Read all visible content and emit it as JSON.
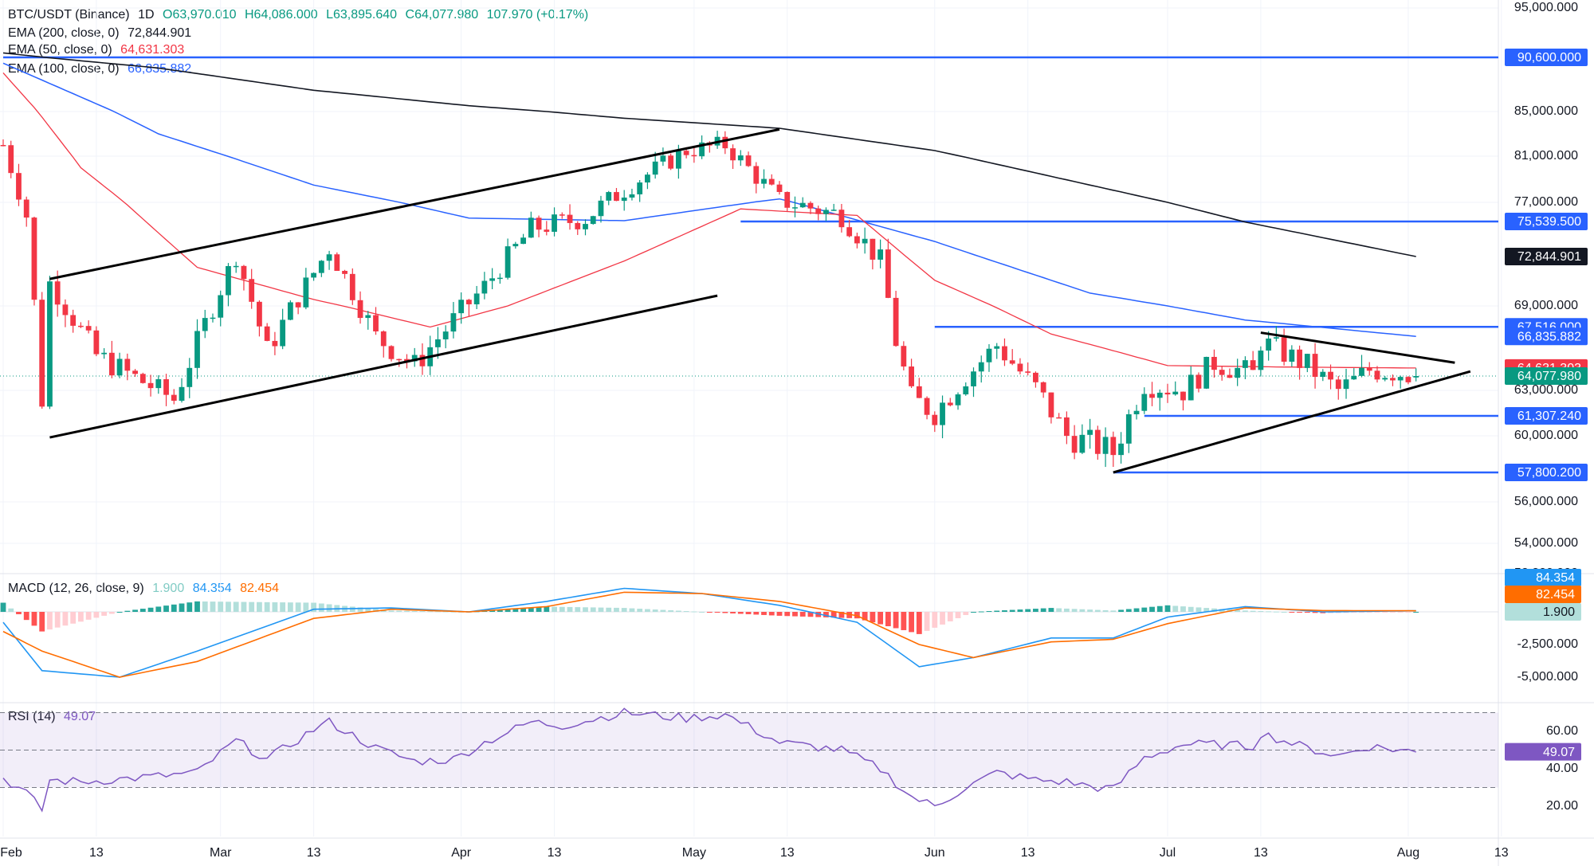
{
  "header": {
    "symbol": "BTC/USDT (Binance)",
    "interval": "1D",
    "open": "O63,970.010",
    "high": "H64,086.000",
    "low": "L63,895.640",
    "close": "C64,077.980",
    "change": "107.970 (+0.17%)"
  },
  "indicators": {
    "ema200": {
      "label": "EMA (200, close, 0)",
      "value": "72,844.901",
      "color": "#131722"
    },
    "ema50": {
      "label": "EMA (50, close, 0)",
      "value": "64,631.303",
      "color": "#f23645"
    },
    "ema100": {
      "label": "EMA (100, close, 0)",
      "value": "66,835.882",
      "color": "#2962ff"
    },
    "macd": {
      "label": "MACD (12, 26, close, 9)",
      "hist": "1.900",
      "macd": "84.354",
      "signal": "82.454",
      "macd_color": "#2196f3",
      "signal_color": "#ff6d00",
      "hist_color": "#b2dfdb"
    },
    "rsi": {
      "label": "RSI (14)",
      "value": "49.07",
      "color": "#7e57c2"
    }
  },
  "colors": {
    "up": "#089981",
    "down": "#f23645",
    "level_line": "#2962ff",
    "trendline": "#000000",
    "grid": "#f0f3fa",
    "text": "#131722"
  },
  "chart_data": [
    {
      "type": "candlestick",
      "title": "BTC/USDT (Binance) 1D",
      "x_ticks": [
        "Feb",
        "13",
        "Mar",
        "13",
        "Apr",
        "13",
        "May",
        "13",
        "Jun",
        "13",
        "Jul",
        "13",
        "Aug",
        "13"
      ],
      "y_ticks": [
        "95,000.000",
        "85,000.000",
        "81,000.000",
        "77,000.000",
        "69,000.000",
        "63,000.000",
        "60,000.000",
        "56,000.000",
        "54,000.000",
        "52,200.000"
      ],
      "ylim": [
        52200,
        95000
      ],
      "price_labels": [
        {
          "text": "90,600.000",
          "value": 90600,
          "kind": "level"
        },
        {
          "text": "75,539.500",
          "value": 75539.5,
          "kind": "level"
        },
        {
          "text": "72,844.901",
          "value": 72844.901,
          "kind": "ema200"
        },
        {
          "text": "67,516.000",
          "value": 67516,
          "kind": "level"
        },
        {
          "text": "66,835.882",
          "value": 66835.882,
          "kind": "ema100"
        },
        {
          "text": "64,631.303",
          "value": 64631.303,
          "kind": "ema50"
        },
        {
          "text": "64,077.980",
          "value": 64077.98,
          "kind": "last"
        },
        {
          "text": "61,307.240",
          "value": 61307.24,
          "kind": "level"
        },
        {
          "text": "57,800.200",
          "value": 57800.2,
          "kind": "level"
        }
      ],
      "horizontal_levels": [
        {
          "value": 90600,
          "from_day": 0,
          "to_day": 200
        },
        {
          "value": 75539.5,
          "from_day": 95,
          "to_day": 200
        },
        {
          "value": 67516,
          "from_day": 120,
          "to_day": 200
        },
        {
          "value": 61307.24,
          "from_day": 147,
          "to_day": 200
        },
        {
          "value": 57800.2,
          "from_day": 143,
          "to_day": 200
        }
      ],
      "trendlines": [
        {
          "from": [
            6,
            71100
          ],
          "to": [
            100,
            83400
          ]
        },
        {
          "from": [
            6,
            59900
          ],
          "to": [
            92,
            69800
          ]
        },
        {
          "from": [
            143,
            57800
          ],
          "to": [
            189,
            64400
          ]
        },
        {
          "from": [
            162,
            67100
          ],
          "to": [
            187,
            65000
          ]
        }
      ],
      "ohlc_anchors": [
        {
          "day": 0,
          "close": 82000
        },
        {
          "day": 3,
          "close": 76000
        },
        {
          "day": 5,
          "close": 62400
        },
        {
          "day": 6,
          "close": 70800
        },
        {
          "day": 12,
          "close": 65500
        },
        {
          "day": 22,
          "close": 62400
        },
        {
          "day": 30,
          "close": 73000
        },
        {
          "day": 34,
          "close": 65800
        },
        {
          "day": 42,
          "close": 73500
        },
        {
          "day": 48,
          "close": 66800
        },
        {
          "day": 53,
          "close": 64800
        },
        {
          "day": 62,
          "close": 70500
        },
        {
          "day": 68,
          "close": 75000
        },
        {
          "day": 75,
          "close": 75800
        },
        {
          "day": 82,
          "close": 79000
        },
        {
          "day": 88,
          "close": 81500
        },
        {
          "day": 93,
          "close": 82000
        },
        {
          "day": 100,
          "close": 77200
        },
        {
          "day": 108,
          "close": 76000
        },
        {
          "day": 113,
          "close": 72500
        },
        {
          "day": 115,
          "close": 66500
        },
        {
          "day": 117,
          "close": 62500
        },
        {
          "day": 120,
          "close": 61500
        },
        {
          "day": 124,
          "close": 64000
        },
        {
          "day": 128,
          "close": 66200
        },
        {
          "day": 133,
          "close": 63200
        },
        {
          "day": 137,
          "close": 60000
        },
        {
          "day": 141,
          "close": 59400
        },
        {
          "day": 143,
          "close": 59000
        },
        {
          "day": 147,
          "close": 63500
        },
        {
          "day": 152,
          "close": 63000
        },
        {
          "day": 156,
          "close": 65000
        },
        {
          "day": 161,
          "close": 64200
        },
        {
          "day": 162,
          "close": 66500
        },
        {
          "day": 168,
          "close": 64800
        },
        {
          "day": 172,
          "close": 63000
        },
        {
          "day": 176,
          "close": 64500
        },
        {
          "day": 180,
          "close": 64300
        },
        {
          "day": 182,
          "close": 64078
        }
      ],
      "ema200": [
        [
          0,
          91000
        ],
        [
          20,
          89500
        ],
        [
          40,
          87200
        ],
        [
          60,
          85600
        ],
        [
          80,
          84400
        ],
        [
          100,
          83500
        ],
        [
          120,
          81500
        ],
        [
          140,
          78500
        ],
        [
          160,
          75500
        ],
        [
          182,
          72845
        ]
      ],
      "ema100": [
        [
          0,
          90000
        ],
        [
          20,
          83000
        ],
        [
          40,
          78500
        ],
        [
          60,
          75800
        ],
        [
          80,
          75600
        ],
        [
          100,
          77300
        ],
        [
          120,
          74000
        ],
        [
          140,
          70000
        ],
        [
          160,
          68000
        ],
        [
          182,
          66836
        ]
      ],
      "ema50": [
        [
          0,
          89000
        ],
        [
          10,
          80000
        ],
        [
          25,
          72000
        ],
        [
          40,
          69500
        ],
        [
          55,
          67500
        ],
        [
          65,
          69000
        ],
        [
          80,
          72500
        ],
        [
          95,
          76500
        ],
        [
          110,
          76000
        ],
        [
          120,
          71000
        ],
        [
          135,
          67000
        ],
        [
          150,
          64800
        ],
        [
          165,
          64700
        ],
        [
          182,
          64631
        ]
      ]
    },
    {
      "type": "macd",
      "title": "MACD (12, 26, close, 9)",
      "y_ticks": [
        "-2,500.000",
        "-5,000.000"
      ],
      "ylim": [
        -6500,
        2500
      ],
      "value_labels": [
        "84.354",
        "82.454",
        "1.900"
      ],
      "macd_line": [
        [
          0,
          -800
        ],
        [
          5,
          -4500
        ],
        [
          15,
          -5000
        ],
        [
          25,
          -3000
        ],
        [
          40,
          200
        ],
        [
          50,
          300
        ],
        [
          60,
          0
        ],
        [
          70,
          800
        ],
        [
          80,
          1800
        ],
        [
          90,
          1400
        ],
        [
          100,
          500
        ],
        [
          110,
          -800
        ],
        [
          118,
          -4200
        ],
        [
          125,
          -3500
        ],
        [
          135,
          -2000
        ],
        [
          143,
          -2000
        ],
        [
          150,
          -400
        ],
        [
          160,
          400
        ],
        [
          170,
          0
        ],
        [
          182,
          84
        ]
      ],
      "signal_line": [
        [
          0,
          -1500
        ],
        [
          5,
          -3000
        ],
        [
          15,
          -5000
        ],
        [
          25,
          -3800
        ],
        [
          40,
          -500
        ],
        [
          50,
          200
        ],
        [
          60,
          0
        ],
        [
          70,
          400
        ],
        [
          80,
          1500
        ],
        [
          90,
          1400
        ],
        [
          100,
          800
        ],
        [
          110,
          -300
        ],
        [
          118,
          -2500
        ],
        [
          125,
          -3500
        ],
        [
          135,
          -2300
        ],
        [
          143,
          -2100
        ],
        [
          150,
          -900
        ],
        [
          160,
          300
        ],
        [
          170,
          100
        ],
        [
          182,
          82
        ]
      ]
    },
    {
      "type": "rsi",
      "title": "RSI (14)",
      "y_ticks": [
        "60.00",
        "40.00",
        "20.00"
      ],
      "ylim": [
        10,
        75
      ],
      "bands": [
        70,
        50,
        30
      ],
      "value_label": "49.07",
      "values": [
        [
          0,
          35
        ],
        [
          3,
          27
        ],
        [
          5,
          18
        ],
        [
          6,
          34
        ],
        [
          10,
          33
        ],
        [
          20,
          36
        ],
        [
          25,
          38
        ],
        [
          30,
          55
        ],
        [
          34,
          45
        ],
        [
          40,
          61
        ],
        [
          42,
          65
        ],
        [
          48,
          51
        ],
        [
          53,
          44
        ],
        [
          58,
          45
        ],
        [
          62,
          54
        ],
        [
          68,
          65
        ],
        [
          72,
          63
        ],
        [
          80,
          70
        ],
        [
          88,
          67
        ],
        [
          93,
          69
        ],
        [
          100,
          54
        ],
        [
          108,
          50
        ],
        [
          113,
          40
        ],
        [
          117,
          25
        ],
        [
          120,
          20
        ],
        [
          124,
          30
        ],
        [
          128,
          38
        ],
        [
          133,
          34
        ],
        [
          137,
          33
        ],
        [
          141,
          30
        ],
        [
          143,
          29
        ],
        [
          147,
          46
        ],
        [
          152,
          53
        ],
        [
          156,
          53
        ],
        [
          161,
          52
        ],
        [
          162,
          59
        ],
        [
          168,
          51
        ],
        [
          172,
          47
        ],
        [
          176,
          52
        ],
        [
          180,
          50
        ],
        [
          182,
          49
        ]
      ]
    }
  ]
}
